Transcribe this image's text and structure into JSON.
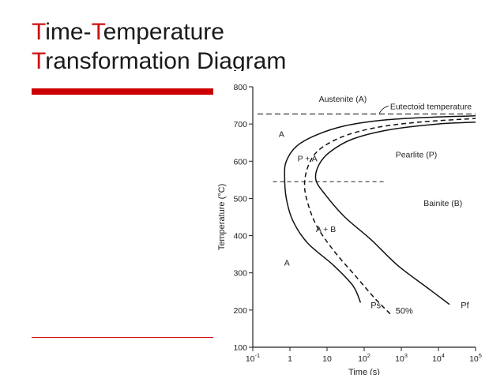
{
  "slide": {
    "title_line1_first": "T",
    "title_line1_rest_a": "ime-",
    "title_line1_accent2": "T",
    "title_line1_rest_b": "emperature",
    "title_line2_first": "T",
    "title_line2_rest": "ransformation Diagram"
  },
  "colors": {
    "accent": "#cc1111",
    "bar": "#cc0000"
  },
  "chart_data": {
    "type": "line",
    "xlabel": "Time (s)",
    "ylabel": "Temperature (°C)",
    "x_scale": "log",
    "xlim": [
      0.1,
      100000
    ],
    "ylim": [
      100,
      800
    ],
    "x_ticks": [
      {
        "v": 0.1,
        "base": "10",
        "exp": "-1"
      },
      {
        "v": 1,
        "base": "1",
        "exp": ""
      },
      {
        "v": 10,
        "base": "10",
        "exp": ""
      },
      {
        "v": 100,
        "base": "10",
        "exp": "2"
      },
      {
        "v": 1000,
        "base": "10",
        "exp": "3"
      },
      {
        "v": 10000,
        "base": "10",
        "exp": "4"
      },
      {
        "v": 100000,
        "base": "10",
        "exp": "5"
      }
    ],
    "y_ticks": [
      100,
      200,
      300,
      400,
      500,
      600,
      700,
      800
    ],
    "eutectoid_temperature": 727,
    "isotherm": {
      "temp": 545,
      "x_start": 0.35,
      "x_end": 400
    },
    "series": [
      {
        "name": "Ps",
        "style": "solid",
        "points": [
          [
            80,
            220
          ],
          [
            50,
            265
          ],
          [
            15,
            320
          ],
          [
            3,
            380
          ],
          [
            1.2,
            440
          ],
          [
            0.8,
            500
          ],
          [
            0.72,
            560
          ],
          [
            0.8,
            600
          ],
          [
            1.5,
            640
          ],
          [
            5,
            670
          ],
          [
            30,
            695
          ],
          [
            300,
            710
          ],
          [
            5000,
            718
          ],
          [
            100000,
            722
          ]
        ]
      },
      {
        "name": "50%",
        "style": "dashed",
        "points": [
          [
            500,
            190
          ],
          [
            200,
            230
          ],
          [
            60,
            290
          ],
          [
            15,
            360
          ],
          [
            5,
            430
          ],
          [
            2.8,
            500
          ],
          [
            2.5,
            545
          ],
          [
            3.2,
            590
          ],
          [
            6,
            630
          ],
          [
            25,
            665
          ],
          [
            200,
            690
          ],
          [
            3000,
            705
          ],
          [
            100000,
            715
          ]
        ]
      },
      {
        "name": "Pf",
        "style": "solid",
        "points": [
          [
            20000,
            215
          ],
          [
            5000,
            260
          ],
          [
            800,
            320
          ],
          [
            150,
            390
          ],
          [
            30,
            450
          ],
          [
            9,
            510
          ],
          [
            5,
            550
          ],
          [
            6,
            590
          ],
          [
            12,
            625
          ],
          [
            50,
            660
          ],
          [
            500,
            685
          ],
          [
            10000,
            700
          ],
          [
            100000,
            705
          ]
        ]
      }
    ],
    "region_labels": [
      {
        "text": "Austenite (A)",
        "x": 6,
        "y": 760
      },
      {
        "text": "Eutectoid temperature",
        "x": 500,
        "y": 740
      },
      {
        "text": "A",
        "x": 0.5,
        "y": 665
      },
      {
        "text": "P + A",
        "x": 1.6,
        "y": 600
      },
      {
        "text": "Pearlite (P)",
        "x": 700,
        "y": 610
      },
      {
        "text": "Bainite (B)",
        "x": 4000,
        "y": 480
      },
      {
        "text": "A + B",
        "x": 5,
        "y": 410
      },
      {
        "text": "A",
        "x": 0.7,
        "y": 320
      }
    ],
    "curve_labels": [
      {
        "text": "Ps",
        "x": 150,
        "y": 205
      },
      {
        "text": "50%",
        "x": 700,
        "y": 190
      },
      {
        "text": "Pf",
        "x": 40000,
        "y": 205
      }
    ]
  }
}
